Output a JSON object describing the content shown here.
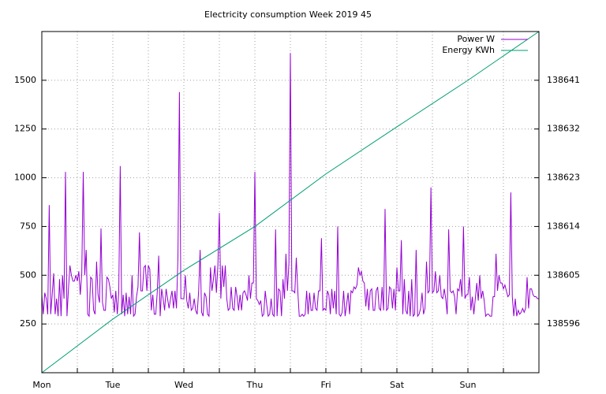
{
  "chart_data": {
    "type": "line",
    "title": "Electricity consumption Week 2019 45",
    "xlim": [
      0,
      168
    ],
    "xticks": [
      {
        "value": 0,
        "label": "Mon"
      },
      {
        "value": 24,
        "label": "Tue"
      },
      {
        "value": 48,
        "label": "Wed"
      },
      {
        "value": 72,
        "label": "Thu"
      },
      {
        "value": 96,
        "label": "Fri"
      },
      {
        "value": 120,
        "label": "Sat"
      },
      {
        "value": 144,
        "label": "Sun"
      }
    ],
    "xminorticks": [
      12,
      36,
      60,
      84,
      108,
      132,
      156
    ],
    "ylim": [
      0,
      1750
    ],
    "yticks": [
      250,
      500,
      750,
      1000,
      1250,
      1500
    ],
    "y2lim": [
      138587,
      138650
    ],
    "y2ticks": [
      138596,
      138605,
      138614,
      138623,
      138632,
      138641
    ],
    "grid": true,
    "legend": "top-right",
    "series": [
      {
        "name": "Power W",
        "color": "#9400d3",
        "x": [
          0,
          0.5,
          1,
          1.5,
          2,
          2.5,
          3,
          3.5,
          4,
          4.5,
          5,
          5.5,
          6,
          6.5,
          7,
          7.5,
          8,
          8.5,
          9,
          9.5,
          10,
          10.5,
          11,
          11.5,
          12,
          12.5,
          13,
          13.5,
          14,
          14.5,
          15,
          15.5,
          16,
          16.5,
          17,
          17.5,
          18,
          18.5,
          19,
          19.5,
          20,
          20.5,
          21,
          21.5,
          22,
          22.5,
          23,
          23.5,
          24,
          24.5,
          25,
          25.5,
          26,
          26.5,
          27,
          27.5,
          28,
          28.5,
          29,
          29.5,
          30,
          30.5,
          31,
          31.5,
          32,
          32.5,
          33,
          33.5,
          34,
          34.5,
          35,
          35.5,
          36,
          36.5,
          37,
          37.5,
          38,
          38.5,
          39,
          39.5,
          40,
          40.5,
          41,
          41.5,
          42,
          42.5,
          43,
          43.5,
          44,
          44.5,
          45,
          45.5,
          46,
          46.5,
          47,
          47.5,
          48,
          48.5,
          49,
          49.5,
          50,
          50.5,
          51,
          51.5,
          52,
          52.5,
          53,
          53.5,
          54,
          54.5,
          55,
          55.5,
          56,
          56.5,
          57,
          57.5,
          58,
          58.5,
          59,
          59.5,
          60,
          60.5,
          61,
          61.5,
          62,
          62.5,
          63,
          63.5,
          64,
          64.5,
          65,
          65.5,
          66,
          66.5,
          67,
          67.5,
          68,
          68.5,
          69,
          69.5,
          70,
          70.5,
          71,
          71.5,
          72,
          72.5,
          73,
          73.5,
          74,
          74.5,
          75,
          75.5,
          76,
          76.5,
          77,
          77.5,
          78,
          78.5,
          79,
          79.5,
          80,
          80.5,
          81,
          81.5,
          82,
          82.5,
          83,
          83.5,
          84,
          84.5,
          85,
          85.5,
          86,
          86.5,
          87,
          87.5,
          88,
          88.5,
          89,
          89.5,
          90,
          90.5,
          91,
          91.5,
          92,
          92.5,
          93,
          93.5,
          94,
          94.5,
          95,
          95.5,
          96,
          96.5,
          97,
          97.5,
          98,
          98.5,
          99,
          99.5,
          100,
          100.5,
          101,
          101.5,
          102,
          102.5,
          103,
          103.5,
          104,
          104.5,
          105,
          105.5,
          106,
          106.5,
          107,
          107.5,
          108,
          108.5,
          109,
          109.5,
          110,
          110.5,
          111,
          111.5,
          112,
          112.5,
          113,
          113.5,
          114,
          114.5,
          115,
          115.5,
          116,
          116.5,
          117,
          117.5,
          118,
          118.5,
          119,
          119.5,
          120,
          120.5,
          121,
          121.5,
          122,
          122.5,
          123,
          123.5,
          124,
          124.5,
          125,
          125.5,
          126,
          126.5,
          127,
          127.5,
          128,
          128.5,
          129,
          129.5,
          130,
          130.5,
          131,
          131.5,
          132,
          132.5,
          133,
          133.5,
          134,
          134.5,
          135,
          135.5,
          136,
          136.5,
          137,
          137.5,
          138,
          138.5,
          139,
          139.5,
          140,
          140.5,
          141,
          141.5,
          142,
          142.5,
          143,
          143.5,
          144,
          144.5,
          145,
          145.5,
          146,
          146.5,
          147,
          147.5,
          148,
          148.5,
          149,
          149.5,
          150,
          150.5,
          151,
          151.5,
          152,
          152.5,
          153,
          153.5,
          154,
          154.5,
          155,
          155.5,
          156,
          156.5,
          157,
          157.5,
          158,
          158.5,
          159,
          159.5,
          160,
          160.5,
          161,
          161.5,
          162,
          162.5,
          163,
          163.5,
          164,
          164.5,
          165,
          165.5,
          166,
          166.5,
          167,
          167.5,
          168
        ],
        "values": [
          400,
          300,
          410,
          380,
          300,
          860,
          300,
          400,
          510,
          300,
          380,
          290,
          480,
          290,
          500,
          380,
          1030,
          290,
          430,
          550,
          500,
          470,
          470,
          500,
          470,
          520,
          400,
          510,
          1030,
          500,
          630,
          300,
          290,
          490,
          480,
          320,
          300,
          570,
          400,
          360,
          740,
          360,
          320,
          320,
          490,
          480,
          440,
          380,
          400,
          310,
          420,
          300,
          410,
          1060,
          300,
          400,
          290,
          410,
          300,
          390,
          300,
          500,
          290,
          300,
          390,
          440,
          720,
          420,
          420,
          540,
          550,
          420,
          550,
          530,
          320,
          400,
          300,
          300,
          410,
          600,
          290,
          430,
          380,
          320,
          430,
          380,
          330,
          380,
          420,
          330,
          420,
          330,
          590,
          1440,
          380,
          380,
          380,
          500,
          370,
          330,
          410,
          320,
          330,
          380,
          320,
          300,
          420,
          630,
          310,
          290,
          410,
          390,
          300,
          290,
          540,
          420,
          480,
          550,
          410,
          550,
          820,
          380,
          550,
          440,
          550,
          380,
          320,
          330,
          440,
          330,
          320,
          440,
          390,
          320,
          400,
          320,
          410,
          420,
          400,
          370,
          500,
          380,
          460,
          460,
          1030,
          380,
          370,
          350,
          370,
          290,
          300,
          420,
          350,
          290,
          300,
          380,
          300,
          290,
          735,
          290,
          430,
          420,
          290,
          480,
          380,
          610,
          420,
          560,
          1640,
          420,
          420,
          410,
          590,
          420,
          290,
          290,
          300,
          290,
          300,
          420,
          300,
          410,
          320,
          320,
          410,
          330,
          320,
          420,
          420,
          690,
          320,
          330,
          320,
          420,
          400,
          300,
          430,
          330,
          420,
          300,
          750,
          300,
          290,
          310,
          420,
          290,
          350,
          410,
          300,
          420,
          410,
          440,
          430,
          450,
          540,
          500,
          520,
          470,
          460,
          340,
          430,
          320,
          420,
          430,
          320,
          320,
          420,
          440,
          330,
          320,
          440,
          320,
          840,
          320,
          330,
          440,
          430,
          330,
          430,
          320,
          540,
          420,
          420,
          680,
          300,
          480,
          320,
          300,
          420,
          290,
          480,
          290,
          300,
          630,
          290,
          300,
          330,
          410,
          300,
          330,
          570,
          410,
          420,
          950,
          410,
          420,
          520,
          410,
          420,
          500,
          390,
          380,
          430,
          380,
          300,
          735,
          420,
          410,
          420,
          390,
          300,
          430,
          420,
          480,
          390,
          750,
          380,
          400,
          400,
          490,
          320,
          390,
          300,
          380,
          460,
          370,
          500,
          380,
          420,
          370,
          290,
          300,
          300,
          290,
          290,
          390,
          390,
          610,
          420,
          500,
          460,
          460,
          430,
          450,
          420,
          390,
          400,
          925,
          390,
          290,
          380,
          290,
          320,
          300,
          310,
          330,
          310,
          330,
          490,
          330,
          430,
          430,
          400,
          390,
          390,
          380,
          380
        ]
      },
      {
        "name": "Energy KWh",
        "color": "#009e73",
        "axis": "y2",
        "x": [
          0,
          24,
          48,
          72,
          96,
          120,
          144,
          168
        ],
        "values": [
          138587,
          138596.9,
          138605.9,
          138614,
          138623.7,
          138632.4,
          138641,
          138650
        ]
      }
    ]
  }
}
